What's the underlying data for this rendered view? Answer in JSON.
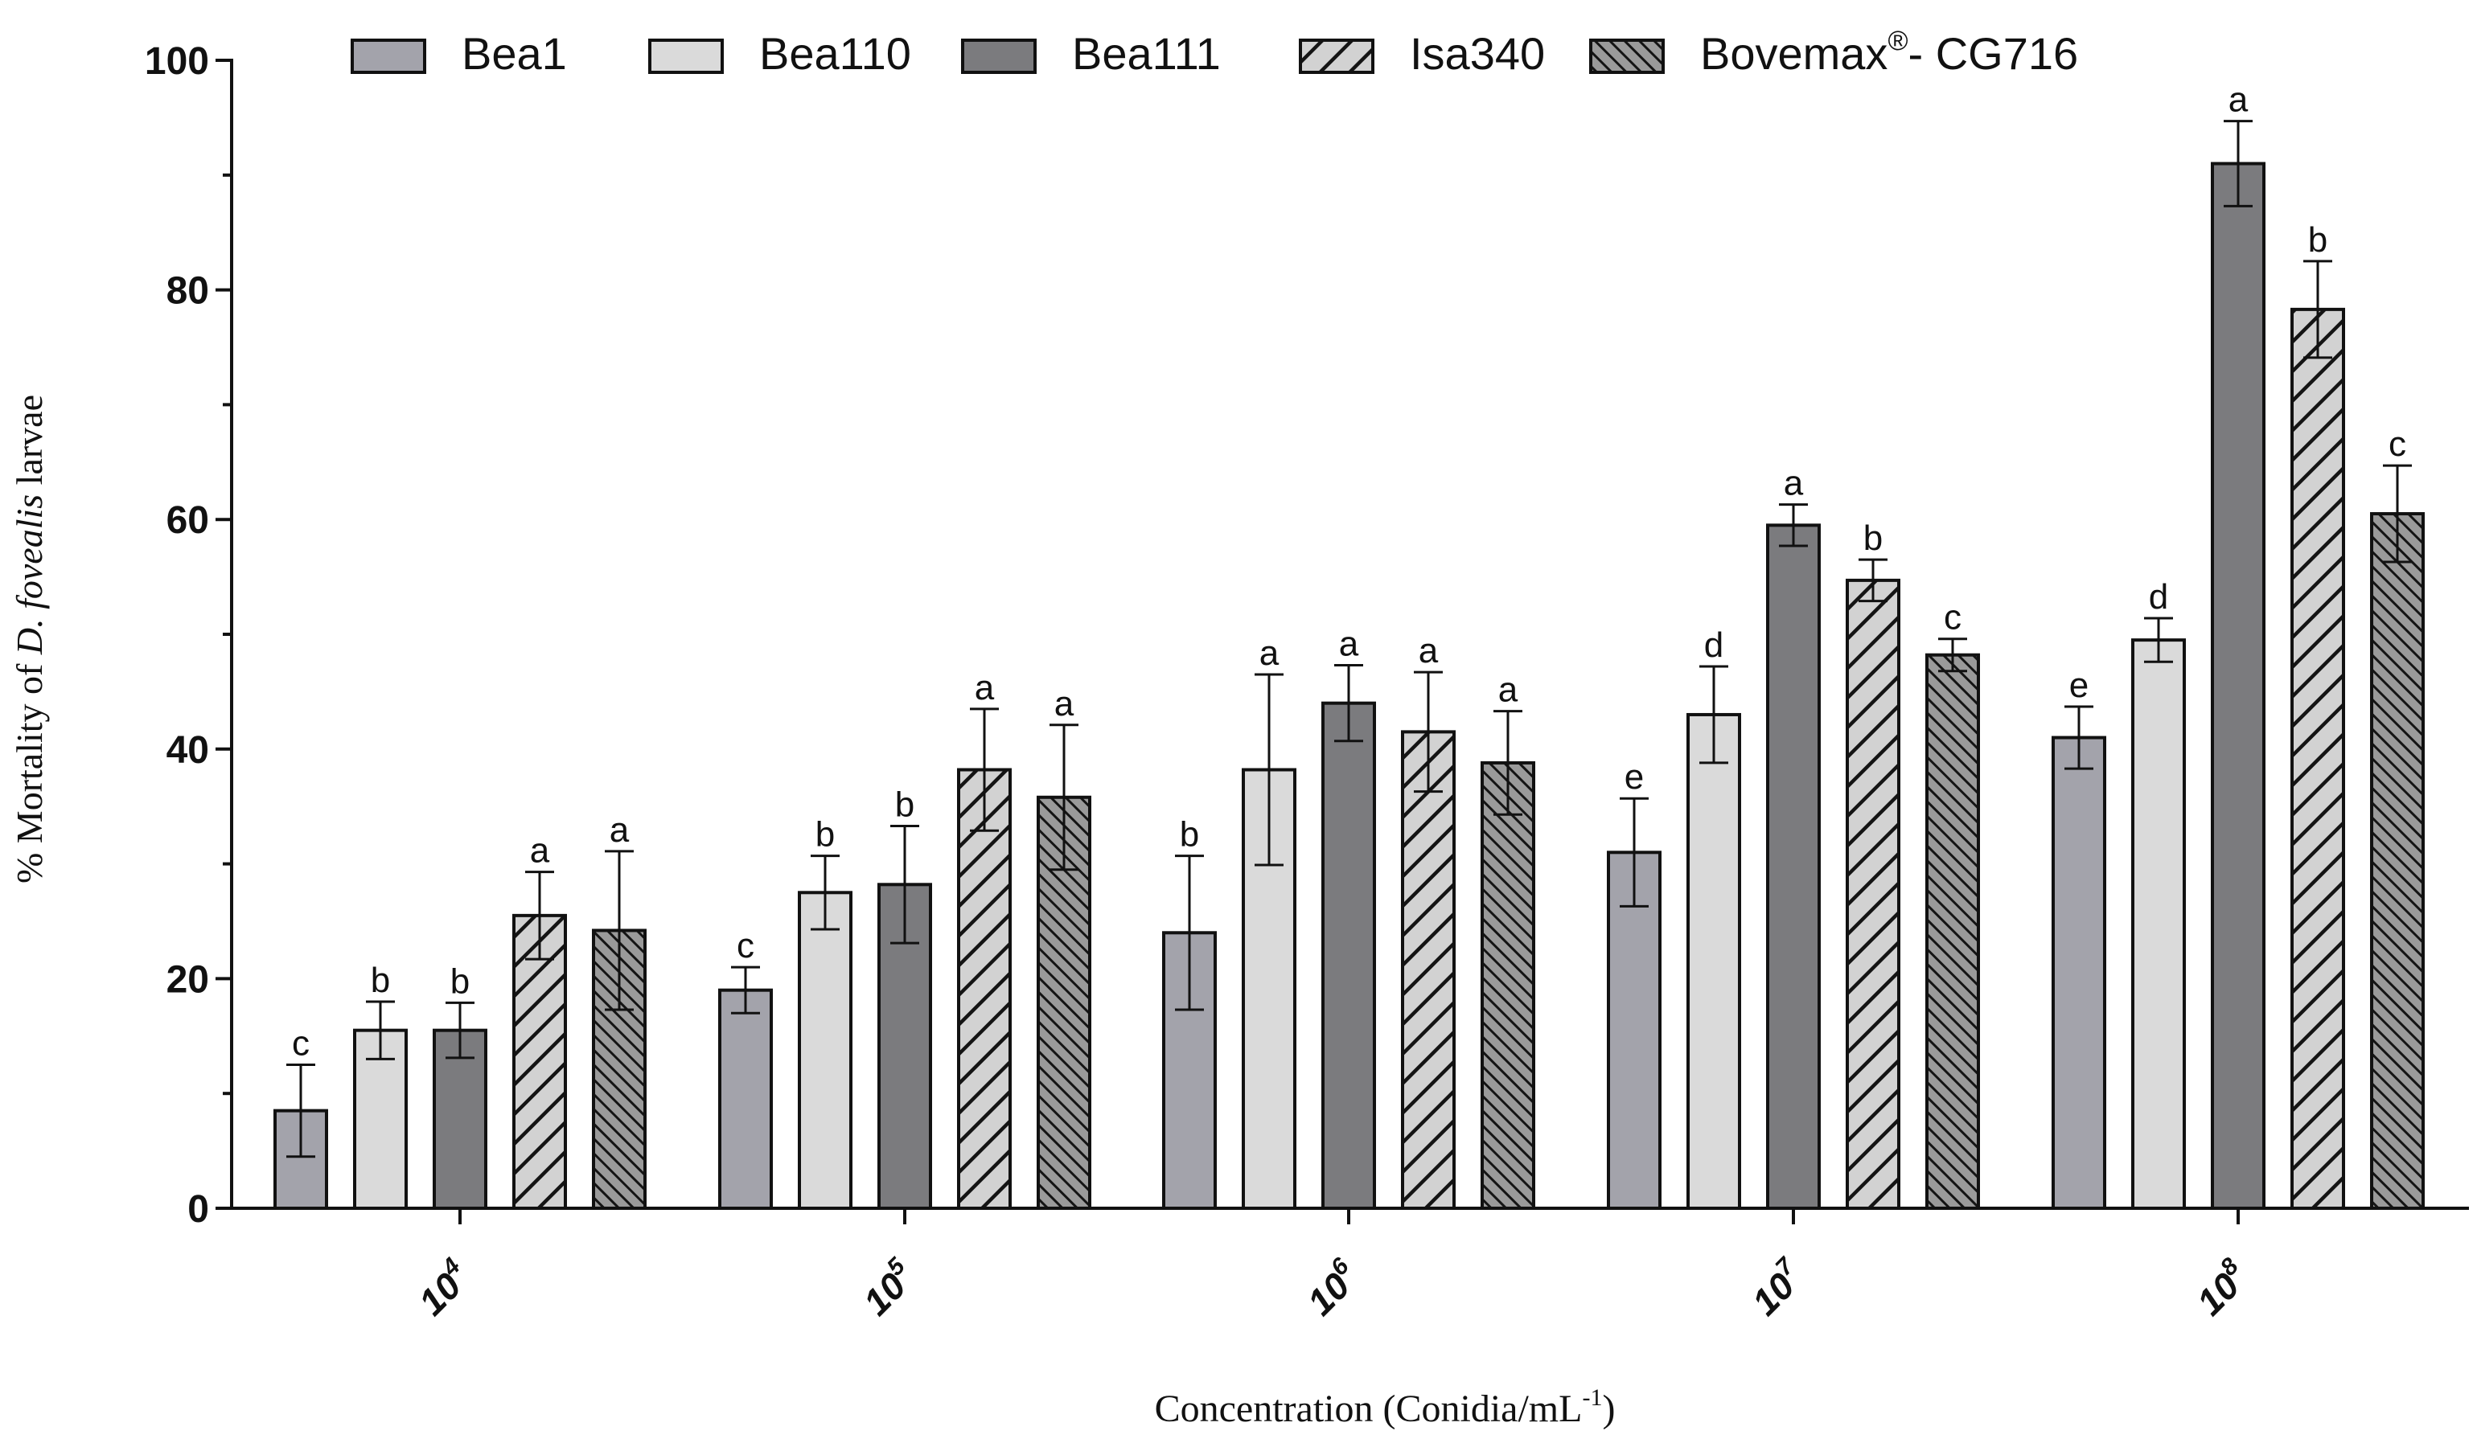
{
  "chart_data": {
    "type": "bar",
    "xlabel": "Concentration (Conidia/mL",
    "xlabel_sup": "-1",
    "xlabel_end": ")",
    "ylabel_pre": "% Mortality of ",
    "ylabel_italic": "D. fovealis",
    "ylabel_post": " larvae",
    "ylim": [
      0,
      100
    ],
    "yticks": [
      0,
      20,
      40,
      60,
      80,
      100
    ],
    "legend_position": "top",
    "categories": [
      {
        "base": "10",
        "exp": "4"
      },
      {
        "base": "10",
        "exp": "5"
      },
      {
        "base": "10",
        "exp": "6"
      },
      {
        "base": "10",
        "exp": "7"
      },
      {
        "base": "10",
        "exp": "8"
      }
    ],
    "series": [
      {
        "name": "Bea1",
        "name_sup": "",
        "name_tail": "",
        "fill": "#a3a3ab",
        "pattern": "solid",
        "values": [
          8.5,
          19,
          24,
          31,
          41
        ],
        "errors": [
          4,
          2,
          6.7,
          4.7,
          2.7
        ],
        "letters": [
          "c",
          "c",
          "b",
          "e",
          "e"
        ]
      },
      {
        "name": "Bea110",
        "name_sup": "",
        "name_tail": "",
        "fill": "#dadada",
        "pattern": "solid",
        "values": [
          15.5,
          27.5,
          38.2,
          43,
          49.5
        ],
        "errors": [
          2.5,
          3.2,
          8.3,
          4.2,
          1.9
        ],
        "letters": [
          "b",
          "b",
          "a",
          "d",
          "d"
        ]
      },
      {
        "name": "Bea111",
        "name_sup": "",
        "name_tail": "",
        "fill": "#7b7b7e",
        "pattern": "solid",
        "values": [
          15.5,
          28.2,
          44,
          59.5,
          91
        ],
        "errors": [
          2.4,
          5.1,
          3.3,
          1.8,
          3.7
        ],
        "letters": [
          "b",
          "b",
          "a",
          "a",
          "a"
        ]
      },
      {
        "name": "Isa340",
        "name_sup": "",
        "name_tail": "",
        "fill": "#d2d2d2",
        "pattern": "wide-hatch",
        "values": [
          25.5,
          38.2,
          41.5,
          54.7,
          78.3
        ],
        "errors": [
          3.8,
          5.3,
          5.2,
          1.8,
          4.2
        ],
        "letters": [
          "a",
          "a",
          "a",
          "b",
          "b"
        ]
      },
      {
        "name": "Bovemax",
        "name_sup": "®",
        "name_tail": "- CG716",
        "fill": "#9a9a9a",
        "pattern": "dense-hatch",
        "values": [
          24.2,
          35.8,
          38.8,
          48.2,
          60.5
        ],
        "errors": [
          6.9,
          6.3,
          4.5,
          1.4,
          4.2
        ],
        "letters": [
          "a",
          "a",
          "a",
          "c",
          "c"
        ]
      }
    ]
  }
}
